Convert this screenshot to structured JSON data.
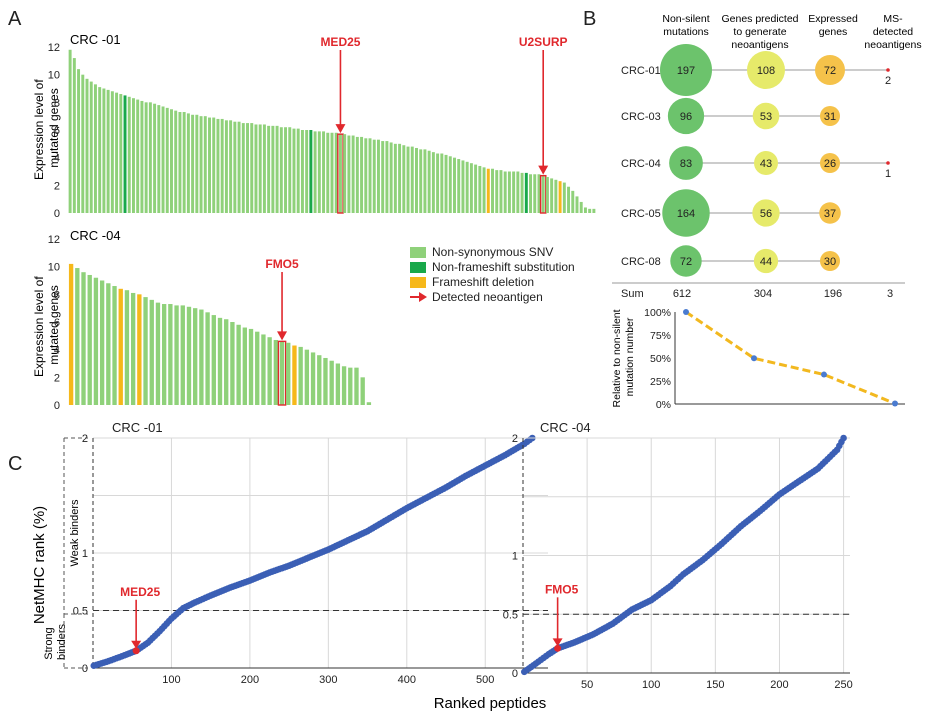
{
  "panels": {
    "a": "A",
    "b": "B",
    "c": "C"
  },
  "colors": {
    "nonsyn": "#8fd17a",
    "nonframe": "#19a84a",
    "frameshift": "#f6b81a",
    "detected": "#e0282d",
    "blue": "#3b5fb5",
    "bubble_green": "#6cc36c",
    "bubble_yellow": "#e6ea6a",
    "bubble_orange": "#f5c24a",
    "dash_line": "#f2b81f"
  },
  "legend": {
    "items": [
      {
        "label": "Non-synonymous SNV",
        "color": "#8fd17a",
        "kind": "box"
      },
      {
        "label": "Non-frameshift substitution",
        "color": "#19a84a",
        "kind": "box"
      },
      {
        "label": "Frameshift deletion",
        "color": "#f6b81a",
        "kind": "box"
      },
      {
        "label": "Detected neoantigen",
        "color": "#e0282d",
        "kind": "arrow"
      }
    ]
  },
  "chart_data": [
    {
      "id": "bar-crc01",
      "type": "bar",
      "title": "CRC -01",
      "ylabel": "Expression level of mutated genes",
      "ylim": [
        0,
        12
      ],
      "yticks": [
        "0",
        "2",
        "4",
        "6",
        "8",
        "10",
        "12"
      ],
      "values": [
        11.8,
        11.2,
        10.4,
        10.0,
        9.7,
        9.5,
        9.3,
        9.1,
        9.0,
        8.9,
        8.8,
        8.7,
        8.6,
        8.5,
        8.4,
        8.3,
        8.2,
        8.1,
        8.0,
        8.0,
        7.9,
        7.8,
        7.7,
        7.6,
        7.5,
        7.4,
        7.3,
        7.3,
        7.2,
        7.1,
        7.1,
        7.0,
        7.0,
        6.9,
        6.9,
        6.8,
        6.8,
        6.7,
        6.7,
        6.6,
        6.6,
        6.5,
        6.5,
        6.5,
        6.4,
        6.4,
        6.4,
        6.3,
        6.3,
        6.3,
        6.2,
        6.2,
        6.2,
        6.1,
        6.1,
        6.0,
        6.0,
        6.0,
        5.9,
        5.9,
        5.9,
        5.8,
        5.8,
        5.8,
        5.7,
        5.7,
        5.6,
        5.6,
        5.5,
        5.5,
        5.4,
        5.4,
        5.3,
        5.3,
        5.2,
        5.2,
        5.1,
        5.0,
        5.0,
        4.9,
        4.8,
        4.8,
        4.7,
        4.6,
        4.6,
        4.5,
        4.4,
        4.3,
        4.3,
        4.2,
        4.1,
        4.0,
        3.9,
        3.8,
        3.7,
        3.6,
        3.5,
        3.4,
        3.3,
        3.2,
        3.2,
        3.1,
        3.1,
        3.0,
        3.0,
        3.0,
        3.0,
        2.9,
        2.9,
        2.8,
        2.8,
        2.8,
        2.7,
        2.6,
        2.5,
        2.4,
        2.3,
        2.2,
        1.9,
        1.6,
        1.2,
        0.8,
        0.4,
        0.3,
        0.3
      ],
      "categories_kind": {
        "nonframe": [
          13,
          57,
          108
        ],
        "frameshift": [
          99,
          116
        ],
        "detected": [
          64,
          112
        ]
      },
      "annotations": [
        {
          "label": "MED25",
          "bar_index": 64
        },
        {
          "label": "U2SURP",
          "bar_index": 112
        }
      ]
    },
    {
      "id": "bar-crc04",
      "type": "bar",
      "title": "CRC -04",
      "ylabel": "Expression level of mutated genes",
      "ylim": [
        0,
        12
      ],
      "yticks": [
        "0",
        "2",
        "4",
        "6",
        "8",
        "10",
        "12"
      ],
      "values": [
        10.2,
        9.9,
        9.6,
        9.4,
        9.2,
        9.0,
        8.8,
        8.6,
        8.4,
        8.3,
        8.1,
        8.0,
        7.8,
        7.6,
        7.4,
        7.3,
        7.3,
        7.2,
        7.2,
        7.1,
        7.0,
        6.9,
        6.7,
        6.5,
        6.3,
        6.2,
        6.0,
        5.8,
        5.6,
        5.5,
        5.3,
        5.1,
        4.9,
        4.7,
        4.6,
        4.5,
        4.3,
        4.2,
        4.0,
        3.8,
        3.6,
        3.4,
        3.2,
        3.0,
        2.8,
        2.7,
        2.7,
        2.0,
        0.2
      ],
      "categories_kind": {
        "nonframe": [],
        "frameshift": [
          0,
          8,
          11,
          36
        ],
        "detected": [
          34
        ]
      },
      "annotations": [
        {
          "label": "FMO5",
          "bar_index": 34
        }
      ]
    },
    {
      "id": "bubble-b",
      "type": "table",
      "headers": [
        "Non-silent mutations",
        "Genes predicted to generate neoantigens",
        "Expressed genes",
        "MS-detected neoantigens"
      ],
      "rows": [
        {
          "label": "CRC-01",
          "values": [
            "197",
            "108",
            "72",
            "2"
          ]
        },
        {
          "label": "CRC-03",
          "values": [
            "96",
            "53",
            "31",
            ""
          ]
        },
        {
          "label": "CRC-04",
          "values": [
            "83",
            "43",
            "26",
            "1"
          ]
        },
        {
          "label": "CRC-05",
          "values": [
            "164",
            "56",
            "37",
            ""
          ]
        },
        {
          "label": "CRC-08",
          "values": [
            "72",
            "44",
            "30",
            ""
          ]
        }
      ],
      "sum": {
        "label": "Sum",
        "values": [
          "612",
          "304",
          "196",
          "3"
        ]
      }
    },
    {
      "id": "line-b",
      "type": "line",
      "ylabel": "Relative to non-silent mutation number",
      "yticks": [
        "0%",
        "25%",
        "50%",
        "75%",
        "100%"
      ],
      "ylim": [
        0,
        100
      ],
      "values": [
        100,
        49.7,
        32.0,
        0.5
      ]
    },
    {
      "id": "scatter-crc01",
      "type": "scatter",
      "title": "CRC -01",
      "ylim": [
        0,
        2
      ],
      "xlim": [
        0,
        580
      ],
      "xticks": [
        "100",
        "200",
        "300",
        "400",
        "500"
      ],
      "yticks": [
        "0",
        "0.5",
        "1",
        "2"
      ],
      "threshold": 0.5,
      "curve": [
        [
          1,
          0.02
        ],
        [
          20,
          0.06
        ],
        [
          40,
          0.11
        ],
        [
          55,
          0.15
        ],
        [
          70,
          0.22
        ],
        [
          85,
          0.32
        ],
        [
          100,
          0.43
        ],
        [
          115,
          0.52
        ],
        [
          130,
          0.57
        ],
        [
          150,
          0.63
        ],
        [
          175,
          0.7
        ],
        [
          200,
          0.76
        ],
        [
          225,
          0.83
        ],
        [
          250,
          0.89
        ],
        [
          275,
          0.96
        ],
        [
          300,
          1.03
        ],
        [
          325,
          1.11
        ],
        [
          350,
          1.19
        ],
        [
          375,
          1.29
        ],
        [
          400,
          1.39
        ],
        [
          425,
          1.48
        ],
        [
          450,
          1.57
        ],
        [
          475,
          1.67
        ],
        [
          500,
          1.76
        ],
        [
          525,
          1.85
        ],
        [
          550,
          1.95
        ],
        [
          560,
          2.0
        ]
      ],
      "highlight": {
        "label": "MED25",
        "x": 55,
        "y": 0.15
      }
    },
    {
      "id": "scatter-crc04",
      "type": "scatter",
      "title": "CRC -04",
      "ylim": [
        0,
        2
      ],
      "xlim": [
        0,
        260
      ],
      "xticks": [
        "50",
        "100",
        "150",
        "200",
        "250"
      ],
      "yticks": [
        "0",
        "0.5",
        "1",
        "2"
      ],
      "threshold": 0.5,
      "curve": [
        [
          1,
          0.01
        ],
        [
          10,
          0.08
        ],
        [
          20,
          0.16
        ],
        [
          27,
          0.21
        ],
        [
          40,
          0.26
        ],
        [
          55,
          0.33
        ],
        [
          70,
          0.42
        ],
        [
          85,
          0.54
        ],
        [
          100,
          0.62
        ],
        [
          115,
          0.74
        ],
        [
          125,
          0.84
        ],
        [
          140,
          0.96
        ],
        [
          155,
          1.1
        ],
        [
          170,
          1.25
        ],
        [
          185,
          1.38
        ],
        [
          200,
          1.52
        ],
        [
          215,
          1.63
        ],
        [
          230,
          1.74
        ],
        [
          245,
          1.9
        ],
        [
          250,
          2.0
        ]
      ],
      "highlight": {
        "label": "FMO5",
        "x": 27,
        "y": 0.21
      }
    }
  ],
  "panel_c": {
    "y_axis_label": "NetMHC rank (%)",
    "x_axis_label": "Ranked peptides",
    "weak_label": "Weak binders",
    "strong_label": "Strong binders"
  }
}
